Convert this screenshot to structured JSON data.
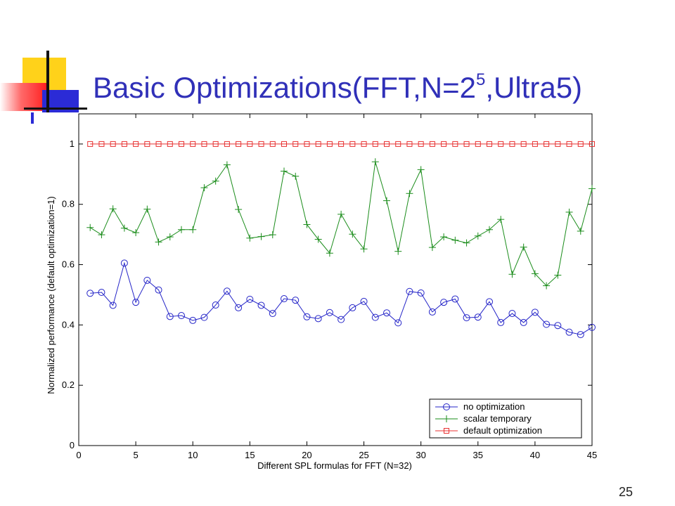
{
  "slide": {
    "title_main": "Basic Optimizations(FFT,N=2",
    "title_sup": "5",
    "title_tail": ",Ultra5)",
    "page_number": "25"
  },
  "colors": {
    "title": "#3030b8",
    "no_optimization": "#2525c8",
    "scalar_temporary": "#1a8c1a",
    "default_optimization": "#e83030"
  },
  "chart_data": {
    "type": "line",
    "title": "",
    "xlabel": "Different SPL formulas for FFT (N=32)",
    "ylabel": "Normalized performance (default optimization=1)",
    "xlim": [
      0,
      45
    ],
    "ylim": [
      0,
      1.1
    ],
    "xticks": [
      "0",
      "5",
      "10",
      "15",
      "20",
      "25",
      "30",
      "35",
      "40",
      "45"
    ],
    "yticks": [
      "0",
      "0.2",
      "0.4",
      "0.6",
      "0.8",
      "1"
    ],
    "legend_position": "bottom-right",
    "x": [
      1,
      2,
      3,
      4,
      5,
      6,
      7,
      8,
      9,
      10,
      11,
      12,
      13,
      14,
      15,
      16,
      17,
      18,
      19,
      20,
      21,
      22,
      23,
      24,
      25,
      26,
      27,
      28,
      29,
      30,
      31,
      32,
      33,
      34,
      35,
      36,
      37,
      38,
      39,
      40,
      41,
      42,
      43,
      44,
      45
    ],
    "series": [
      {
        "name": "no optimization",
        "marker": "circle",
        "color": "#2525c8",
        "values": [
          0.505,
          0.508,
          0.465,
          0.605,
          0.475,
          0.548,
          0.516,
          0.428,
          0.431,
          0.415,
          0.425,
          0.466,
          0.512,
          0.457,
          0.485,
          0.465,
          0.438,
          0.487,
          0.482,
          0.427,
          0.421,
          0.441,
          0.418,
          0.457,
          0.478,
          0.425,
          0.44,
          0.407,
          0.511,
          0.506,
          0.443,
          0.475,
          0.486,
          0.424,
          0.426,
          0.477,
          0.408,
          0.438,
          0.408,
          0.442,
          0.402,
          0.398,
          0.376,
          0.368,
          0.392
        ]
      },
      {
        "name": "scalar temporary",
        "marker": "plus",
        "color": "#1a8c1a",
        "values": [
          0.723,
          0.699,
          0.785,
          0.721,
          0.706,
          0.784,
          0.675,
          0.692,
          0.716,
          0.716,
          0.855,
          0.877,
          0.931,
          0.783,
          0.688,
          0.693,
          0.699,
          0.91,
          0.893,
          0.733,
          0.684,
          0.638,
          0.767,
          0.701,
          0.652,
          0.941,
          0.812,
          0.644,
          0.836,
          0.915,
          0.657,
          0.692,
          0.681,
          0.672,
          0.695,
          0.716,
          0.75,
          0.568,
          0.658,
          0.57,
          0.53,
          0.565,
          0.774,
          0.711,
          0.852
        ]
      },
      {
        "name": "default optimization",
        "marker": "square",
        "color": "#e83030",
        "values": [
          1,
          1,
          1,
          1,
          1,
          1,
          1,
          1,
          1,
          1,
          1,
          1,
          1,
          1,
          1,
          1,
          1,
          1,
          1,
          1,
          1,
          1,
          1,
          1,
          1,
          1,
          1,
          1,
          1,
          1,
          1,
          1,
          1,
          1,
          1,
          1,
          1,
          1,
          1,
          1,
          1,
          1,
          1,
          1,
          1
        ]
      }
    ]
  }
}
